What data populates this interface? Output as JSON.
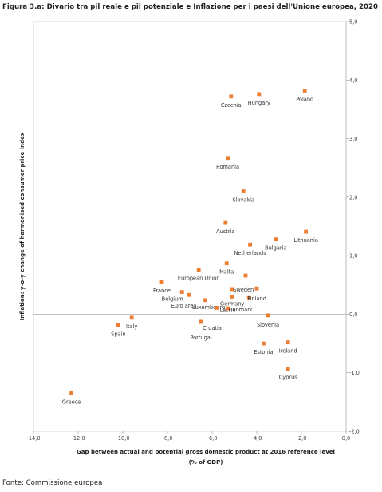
{
  "title": "Figura 3.a: Divario tra pil reale e pil potenziale e Inflazione per i paesi dell'Unione europea, 2020",
  "source": "Fonte: Commissione europea",
  "chart_data": {
    "type": "scatter",
    "xlabel": "Gap between actual and potential gross domestic product at 2016 reference level",
    "xlabel_unit": "(% of GDP)",
    "ylabel": "Inflation: y-o-y change of harmonised consumer price index",
    "xlim": [
      -14,
      0
    ],
    "ylim": [
      -2,
      5
    ],
    "xticks": [
      "-14,0",
      "-12,0",
      "-10,0",
      "-8,0",
      "-6,0",
      "-4,0",
      "-2,0",
      "0,0"
    ],
    "yticks": [
      "5,0",
      "4,0",
      "3,0",
      "2,0",
      "1,0",
      "0,0",
      "-1,0",
      "-2,0"
    ],
    "y_axis_position": "right",
    "grid": false,
    "marker_color": "#ED7D31",
    "points": [
      {
        "label": "Poland",
        "x": -1.85,
        "y": 3.82
      },
      {
        "label": "Hungary",
        "x": -3.9,
        "y": 3.76
      },
      {
        "label": "Czechia",
        "x": -5.15,
        "y": 3.72
      },
      {
        "label": "Romania",
        "x": -5.3,
        "y": 2.67
      },
      {
        "label": "Slovakia",
        "x": -4.6,
        "y": 2.1
      },
      {
        "label": "Austria",
        "x": -5.4,
        "y": 1.56
      },
      {
        "label": "Lithuania",
        "x": -1.8,
        "y": 1.41
      },
      {
        "label": "Bulgaria",
        "x": -3.15,
        "y": 1.28
      },
      {
        "label": "Netherlands",
        "x": -4.3,
        "y": 1.19
      },
      {
        "label": "Malta",
        "x": -5.35,
        "y": 0.87
      },
      {
        "label": "European Union",
        "x": -6.6,
        "y": 0.76
      },
      {
        "label": "Slovenia",
        "x": -4.5,
        "y": 0.66
      },
      {
        "label": "France",
        "x": -8.25,
        "y": 0.55
      },
      {
        "label": "Sweden",
        "x": -5.1,
        "y": 0.43
      },
      {
        "label": "",
        "x": -4.0,
        "y": 0.44
      },
      {
        "label": "Belgium",
        "x": -7.35,
        "y": 0.38
      },
      {
        "label": "Euro area",
        "x": -7.05,
        "y": 0.33
      },
      {
        "label": "Germany",
        "x": -5.1,
        "y": 0.3
      },
      {
        "label": "Finland",
        "x": -4.35,
        "y": 0.29
      },
      {
        "label": "Luxembourg",
        "x": -6.3,
        "y": 0.24
      },
      {
        "label": "Latvia",
        "x": -5.8,
        "y": 0.11
      },
      {
        "label": "Denmark",
        "x": -5.3,
        "y": 0.1
      },
      {
        "label": "Slovenia",
        "x": -3.5,
        "y": -0.02
      },
      {
        "label": "Croatia",
        "x": -6.5,
        "y": -0.13
      },
      {
        "label": "Italy",
        "x": -9.6,
        "y": -0.06
      },
      {
        "label": "Spain",
        "x": -10.2,
        "y": -0.19
      },
      {
        "label": "Portugal",
        "x": -6.5,
        "y": -0.13
      },
      {
        "label": "Estonia",
        "x": -3.7,
        "y": -0.5
      },
      {
        "label": "Ireland",
        "x": -2.6,
        "y": -0.48
      },
      {
        "label": "Cyprus",
        "x": -2.6,
        "y": -0.93
      },
      {
        "label": "Greece",
        "x": -12.3,
        "y": -1.35
      }
    ]
  }
}
